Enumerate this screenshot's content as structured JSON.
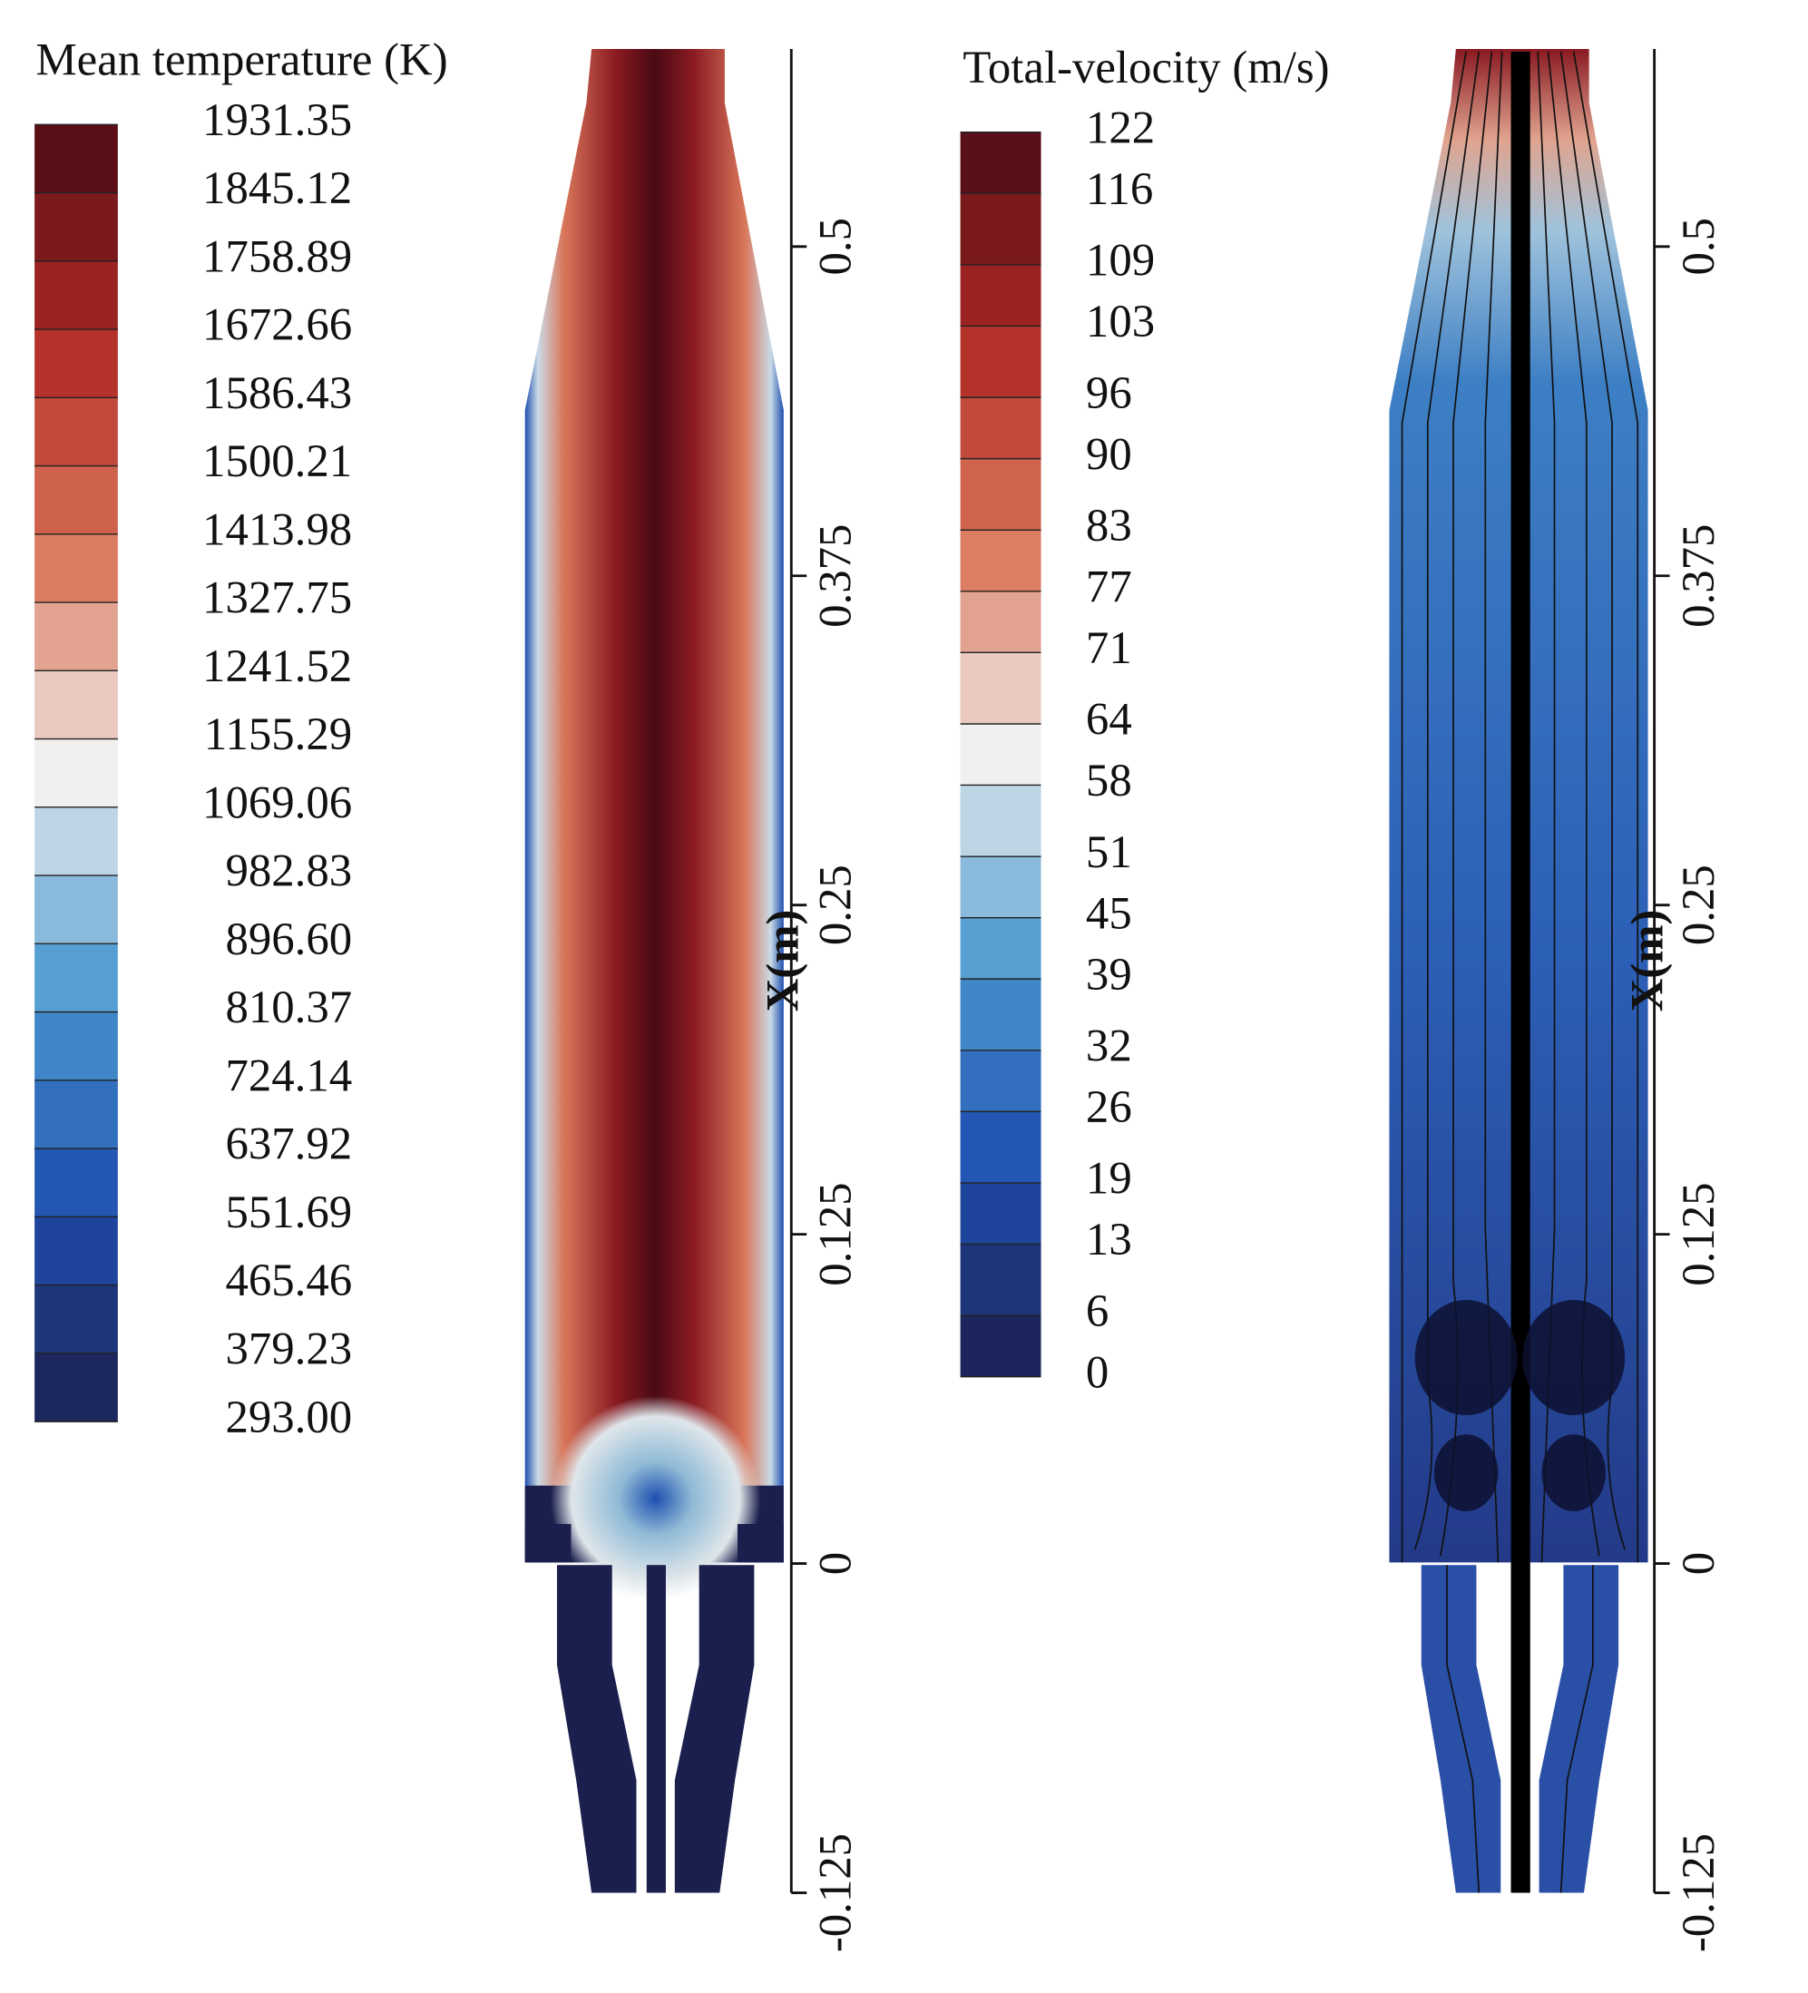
{
  "chart_data": [
    {
      "type": "contour",
      "colorbar_title": "Mean temperature (K)",
      "clim": [
        293,
        1931.35
      ],
      "colorbar_ticks": [
        1931.35,
        1845.12,
        1758.89,
        1672.66,
        1586.43,
        1500.21,
        1413.98,
        1327.75,
        1241.52,
        1155.29,
        1069.06,
        982.83,
        {
          "value": 896.6,
          "label": "896.60"
        },
        810.37,
        724.14,
        637.92,
        551.69,
        465.46,
        379.23,
        {
          "value": 293,
          "label": "293.00"
        }
      ],
      "colormap": [
        "#1b1f4d",
        "#1f4fb0",
        "#4d9ad0",
        "#f2f0ef",
        "#d9765a",
        "#b12a25",
        "#4a0a14"
      ],
      "y_label": "X(m)",
      "ylim": [
        -0.125,
        0.575
      ],
      "yticks": [
        -0.125,
        0,
        0.125,
        0.25,
        0.375,
        0.5
      ]
    },
    {
      "type": "contour",
      "colorbar_title": "Total-velocity (m/s)",
      "clim": [
        0,
        122
      ],
      "colorbar_ticks": [
        122,
        116,
        109,
        103,
        96,
        90,
        83,
        77,
        71,
        64,
        58,
        51,
        45,
        39,
        32,
        26,
        19,
        13,
        6,
        0
      ],
      "colormap": [
        "#1b1f4d",
        "#1f4fb0",
        "#4d9ad0",
        "#f2f0ef",
        "#d9765a",
        "#b12a25",
        "#4a0a14"
      ],
      "y_label": "X(m)",
      "ylim": [
        -0.125,
        0.575
      ],
      "yticks": [
        -0.125,
        0,
        0.125,
        0.25,
        0.375,
        0.5
      ]
    }
  ]
}
